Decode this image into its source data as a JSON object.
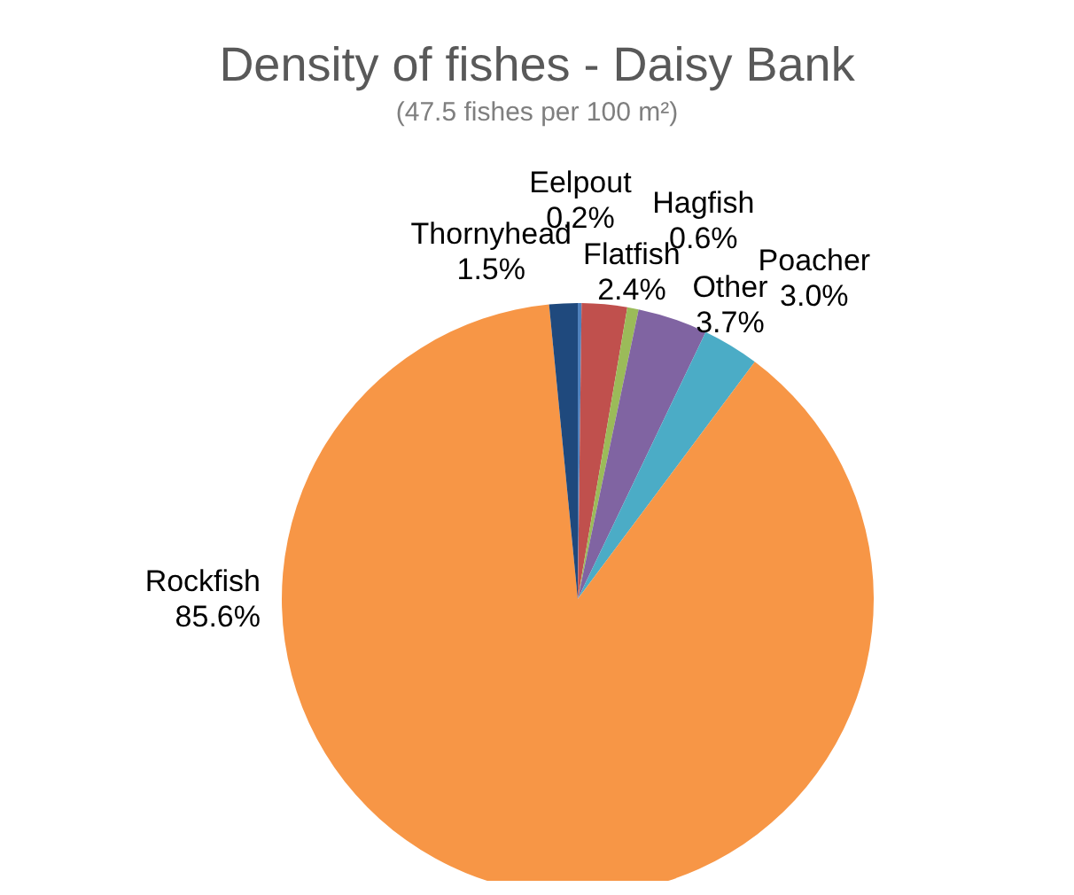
{
  "chart_data": {
    "type": "pie",
    "title": "Density of fishes - Daisy Bank",
    "subtitle": "(47.5 fishes per 100 m²)",
    "categories": [
      "Eelpout",
      "Flatfish",
      "Hagfish",
      "Other",
      "Poacher",
      "Rockfish",
      "Thornyhead"
    ],
    "values": [
      0.2,
      2.4,
      0.6,
      3.7,
      3.0,
      85.6,
      1.5
    ],
    "value_labels": [
      "0.2%",
      "2.4%",
      "0.6%",
      "3.7%",
      "3.0%",
      "85.6%",
      "1.5%"
    ],
    "colors": [
      "#4f81bd",
      "#c0504d",
      "#9bbb59",
      "#8064a2",
      "#4bacc6",
      "#f79646",
      "#1f497d"
    ],
    "legend": false
  }
}
